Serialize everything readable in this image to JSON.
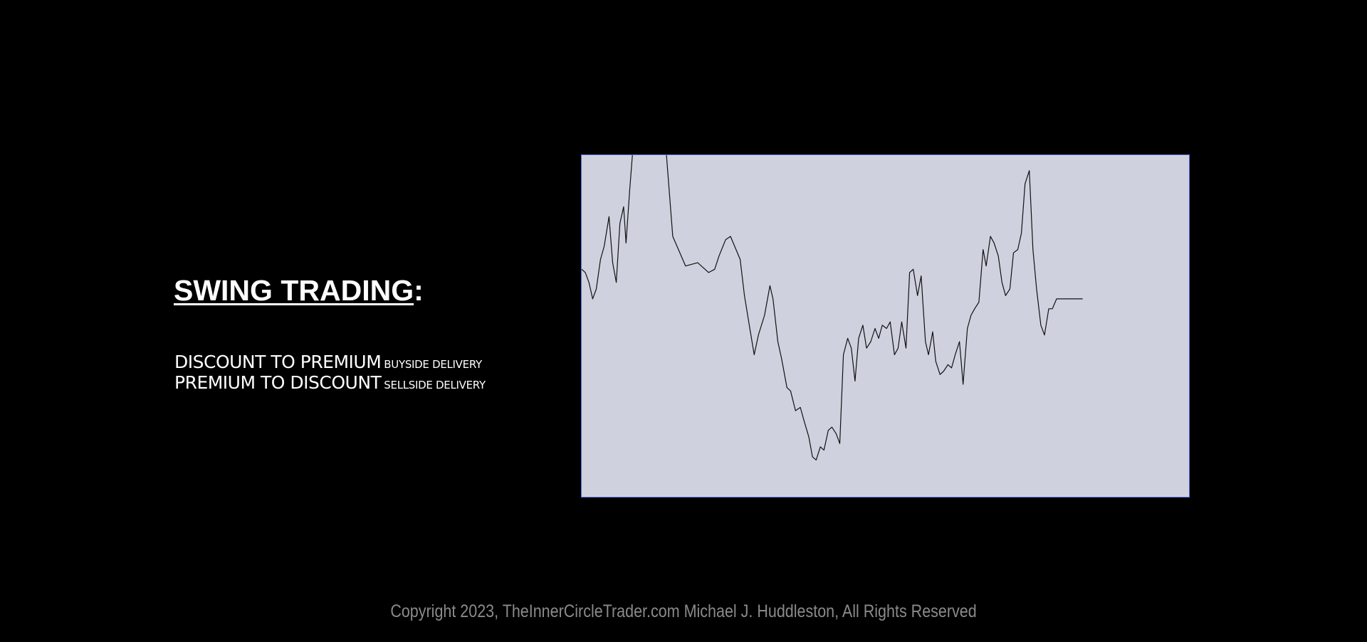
{
  "slide": {
    "title": "SWING TRADING",
    "title_suffix": ":",
    "lines": [
      {
        "main": "DISCOUNT TO PREMIUM",
        "tag": "BUYSIDE DELIVERY"
      },
      {
        "main": "PREMIUM TO DISCOUNT",
        "tag": "SELLSIDE DELIVERY"
      }
    ],
    "footer": "Copyright 2023, TheInnerCircleTrader.com Michael J. Huddleston, All Rights Reserved"
  },
  "colors": {
    "background": "#000000",
    "chart_background": "#cfd2de",
    "chart_border": "#5a6fd8",
    "line": "#111111",
    "text": "#ffffff",
    "footer_text": "#8a8a8a"
  },
  "chart_data": {
    "type": "line",
    "title": "",
    "xlabel": "",
    "ylabel": "",
    "xlim": [
      0,
      100
    ],
    "ylim": [
      0,
      100
    ],
    "grid": false,
    "legend": "none",
    "x": [
      0,
      0.6,
      1.2,
      1.8,
      2.4,
      3.1,
      3.7,
      4.5,
      5.1,
      5.7,
      6.3,
      6.9,
      7.3,
      7.9,
      8.4,
      8.9,
      9.3,
      10.0,
      11.3,
      12.6,
      13.9,
      15.0,
      17.1,
      19.1,
      20.9,
      21.9,
      22.6,
      23.7,
      24.5,
      26.1,
      26.8,
      27.6,
      28.4,
      29.1,
      30.1,
      31.0,
      31.5,
      32.3,
      32.9,
      33.8,
      34.4,
      35.2,
      36.0,
      36.6,
      37.4,
      38.0,
      38.6,
      39.3,
      39.9,
      40.6,
      41.2,
      41.9,
      42.5,
      43.1,
      43.8,
      44.4,
      45.0,
      45.6,
      46.3,
      46.9,
      47.6,
      48.3,
      48.9,
      49.5,
      50.2,
      50.8,
      51.5,
      52.1,
      52.7,
      53.4,
      54.0,
      54.6,
      55.3,
      55.9,
      56.6,
      57.1,
      57.8,
      58.3,
      59.0,
      59.6,
      60.3,
      60.9,
      61.5,
      62.2,
      62.8,
      63.5,
      64.1,
      64.7,
      65.4,
      66.1,
      66.6,
      67.3,
      67.9,
      68.6,
      69.2,
      69.8,
      70.5,
      71.1,
      71.8,
      72.4,
      73.0,
      73.7,
      74.3,
      74.9,
      75.6,
      76.2,
      76.9,
      77.5,
      78.2,
      78.8,
      79.4,
      80.1,
      80.8,
      81.4,
      82.0,
      82.5
    ],
    "y": [
      64,
      63,
      60,
      55,
      58,
      67,
      71,
      80,
      66,
      60,
      78,
      83,
      72,
      88,
      100,
      100,
      100,
      100,
      100,
      100,
      100,
      74,
      65,
      66,
      63,
      64,
      68,
      73,
      74,
      67,
      56,
      47,
      38,
      44,
      50,
      59,
      55,
      42,
      37,
      28,
      27,
      21,
      22,
      18,
      13,
      7,
      6,
      10,
      9,
      15,
      16,
      14,
      11,
      38,
      43,
      40,
      30,
      43,
      47,
      40,
      42,
      46,
      43,
      47,
      46,
      48,
      38,
      40,
      48,
      40,
      63,
      64,
      56,
      62,
      42,
      38,
      45,
      36,
      32,
      33,
      35,
      34,
      38,
      42,
      29,
      46,
      50,
      52,
      54,
      70,
      65,
      74,
      72,
      68,
      60,
      56,
      58,
      69,
      70,
      75,
      90,
      94,
      70,
      58,
      47,
      44,
      52,
      52,
      55,
      55,
      55,
      55,
      55,
      55,
      55,
      55
    ]
  }
}
